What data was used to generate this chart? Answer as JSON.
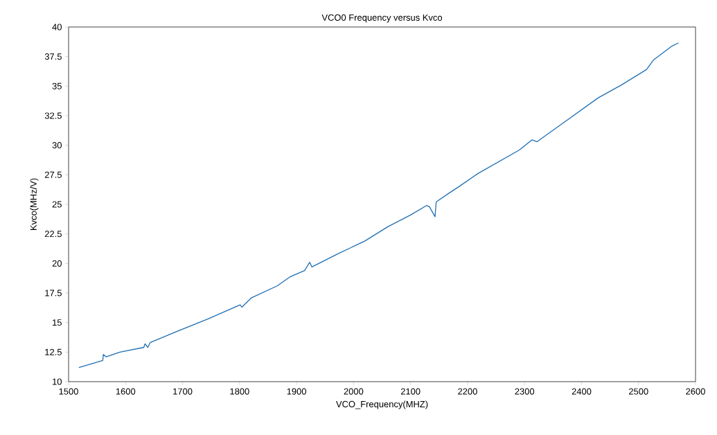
{
  "chart_data": {
    "type": "line",
    "title": "VCO0 Frequency versus Kvco",
    "xlabel": "VCO_Frequency(MHZ)",
    "ylabel": "Kvco(MHz/V)",
    "x": [
      1518,
      1560,
      1561,
      1566,
      1590,
      1632,
      1634,
      1639,
      1643,
      1680,
      1744,
      1801,
      1804,
      1821,
      1866,
      1888,
      1914,
      1923,
      1927,
      1972,
      2020,
      2060,
      2100,
      2128,
      2133,
      2143,
      2145,
      2166,
      2185,
      2218,
      2291,
      2313,
      2322,
      2364,
      2429,
      2470,
      2514,
      2526,
      2559,
      2570
    ],
    "values": [
      11.2,
      11.8,
      12.3,
      12.1,
      12.5,
      12.9,
      13.2,
      12.9,
      13.3,
      14.05,
      15.3,
      16.5,
      16.3,
      17.1,
      18.1,
      18.85,
      19.4,
      20.1,
      19.7,
      20.8,
      21.9,
      23.1,
      24.1,
      24.9,
      24.8,
      23.95,
      25.2,
      25.9,
      26.5,
      27.6,
      29.6,
      30.45,
      30.3,
      31.75,
      34.0,
      35.1,
      36.4,
      37.2,
      38.4,
      38.65
    ],
    "color": "#1f6fb4",
    "xlim": [
      1500,
      2600
    ],
    "ylim": [
      10,
      40
    ],
    "xticks": [
      1500,
      1600,
      1700,
      1800,
      1900,
      2000,
      2100,
      2200,
      2300,
      2400,
      2500,
      2600
    ],
    "yticks": [
      10,
      12.5,
      15,
      17.5,
      20,
      22.5,
      25,
      27.5,
      30,
      32.5,
      35,
      37.5,
      40
    ]
  }
}
